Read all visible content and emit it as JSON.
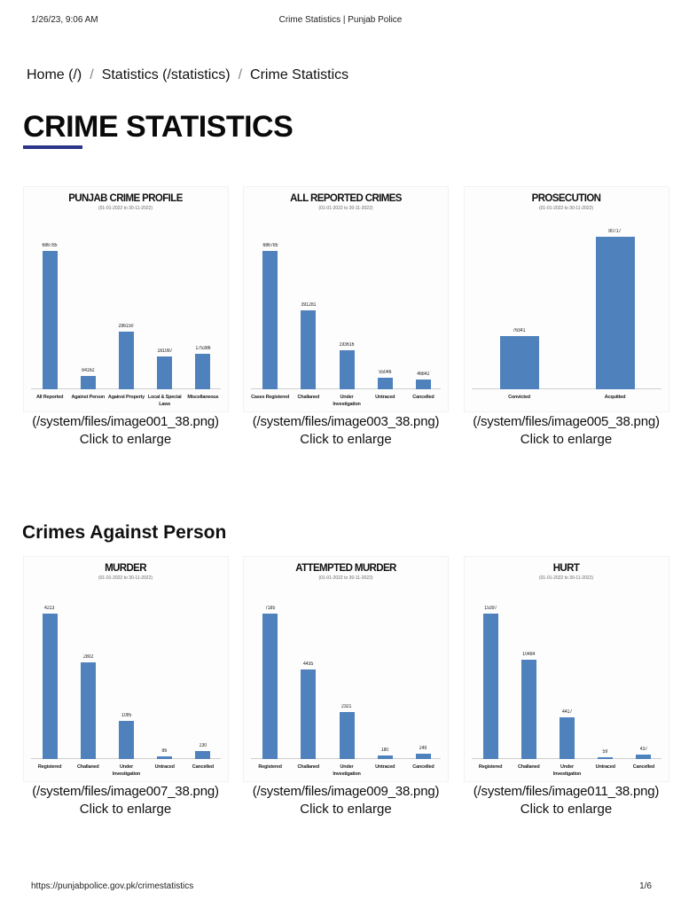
{
  "print_header": {
    "date": "1/26/23, 9:06 AM",
    "title": "Crime Statistics | Punjab Police"
  },
  "print_footer": {
    "url": "https://punjabpolice.gov.pk/crimestatistics",
    "page": "1/6"
  },
  "breadcrumb": {
    "items": [
      {
        "label": "Home (/)"
      },
      {
        "label": "Statistics (/statistics)"
      },
      {
        "label": "Crime Statistics"
      }
    ],
    "separator": "/"
  },
  "page_title": "CRIME STATISTICS",
  "accent_color": "#2b3589",
  "bar_color": "#4f81bd",
  "sections": [
    {
      "title": "",
      "charts": [
        {
          "path": "(/system/files/image001_38.png)",
          "link": "Click to enlarge"
        },
        {
          "path": "(/system/files/image003_38.png)",
          "link": "Click to enlarge"
        },
        {
          "path": "(/system/files/image005_38.png)",
          "link": "Click to enlarge"
        }
      ]
    },
    {
      "title": "Crimes Against Person",
      "charts": [
        {
          "path": "(/system/files/image007_38.png)",
          "link": "Click to enlarge"
        },
        {
          "path": "(/system/files/image009_38.png)",
          "link": "Click to enlarge"
        },
        {
          "path": "(/system/files/image011_38.png)",
          "link": "Click to enlarge"
        }
      ]
    }
  ],
  "chart_data": [
    {
      "type": "bar",
      "title": "PUNJAB CRIME PROFILE",
      "subtitle": "(01-01-2022 to 30-11-2022)",
      "categories": [
        "All Reported",
        "Against Person",
        "Against Property",
        "Local & Special Laws",
        "Miscellaneous"
      ],
      "values": [
        686785,
        64162,
        286150,
        161087,
        175386
      ],
      "xlabel": "",
      "ylabel": "",
      "grid": false,
      "legend": "none"
    },
    {
      "type": "bar",
      "title": "ALL REPORTED CRIMES",
      "subtitle": "(01-01-2022 to 30-11-2022)",
      "categories": [
        "Cases Registered",
        "Challaned",
        "Under Investigation",
        "Untraced",
        "Cancelled"
      ],
      "values": [
        686785,
        391281,
        193616,
        55046,
        46842
      ],
      "xlabel": "",
      "ylabel": "",
      "grid": false,
      "legend": "none"
    },
    {
      "type": "bar",
      "title": "PROSECUTION",
      "subtitle": "(01-01-2022 to 30-11-2022)",
      "categories": [
        "Convicted",
        "Acquitted"
      ],
      "values": [
        76341,
        80717
      ],
      "xlabel": "",
      "ylabel": "",
      "grid": false,
      "legend": "none"
    },
    {
      "type": "bar",
      "title": "MURDER",
      "subtitle": "(01-01-2022 to 30-11-2022)",
      "categories": [
        "Registered",
        "Challaned",
        "Under Investigation",
        "Untraced",
        "Cancelled"
      ],
      "values": [
        4213,
        2802,
        1095,
        86,
        230
      ],
      "xlabel": "",
      "ylabel": "",
      "grid": false,
      "legend": "none"
    },
    {
      "type": "bar",
      "title": "ATTEMPTED MURDER",
      "subtitle": "(01-01-2022 to 30-11-2022)",
      "categories": [
        "Registered",
        "Challaned",
        "Under Investigation",
        "Untraced",
        "Cancelled"
      ],
      "values": [
        7185,
        4435,
        2321,
        180,
        249
      ],
      "xlabel": "",
      "ylabel": "",
      "grid": false,
      "legend": "none"
    },
    {
      "type": "bar",
      "title": "HURT",
      "subtitle": "(01-01-2022 to 30-11-2022)",
      "categories": [
        "Registered",
        "Challaned",
        "Under Investigation",
        "Untraced",
        "Cancelled"
      ],
      "values": [
        15397,
        10484,
        4417,
        59,
        437
      ],
      "xlabel": "",
      "ylabel": "",
      "grid": false,
      "legend": "none"
    }
  ]
}
